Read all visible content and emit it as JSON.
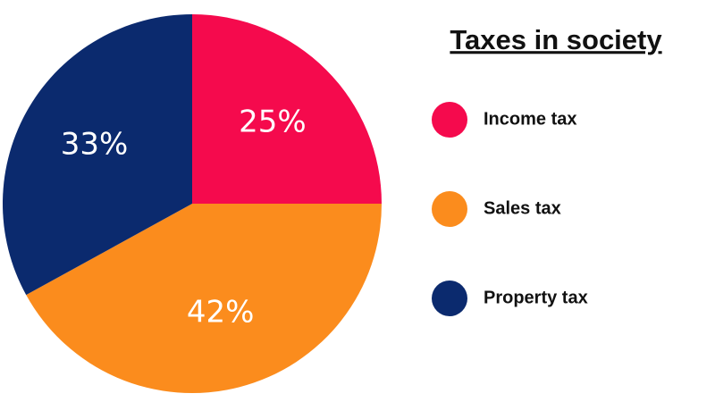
{
  "chart_data": {
    "type": "pie",
    "title": "Taxes in society",
    "categories": [
      "Income tax",
      "Sales tax",
      "Property tax"
    ],
    "values": [
      25,
      42,
      33
    ],
    "value_labels": [
      "25%",
      "42%",
      "33%"
    ],
    "colors": [
      "#f50a4d",
      "#fb8c1d",
      "#0b2a6e"
    ]
  }
}
